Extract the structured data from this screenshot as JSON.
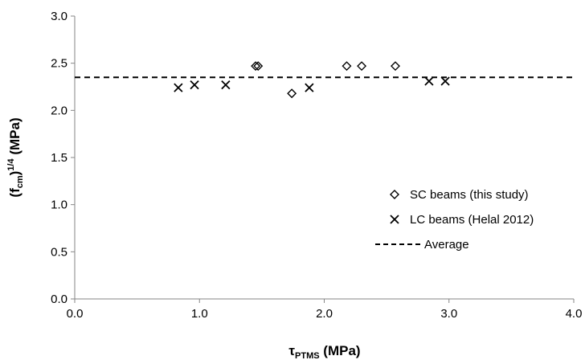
{
  "chart_data": {
    "type": "scatter",
    "xlim": [
      0,
      4
    ],
    "ylim": [
      0,
      3
    ],
    "x_ticks": [
      "0.0",
      "1.0",
      "2.0",
      "3.0",
      "4.0"
    ],
    "y_ticks": [
      "0.0",
      "0.5",
      "1.0",
      "1.5",
      "2.0",
      "2.5",
      "3.0"
    ],
    "x_tick_values": [
      0,
      1,
      2,
      3,
      4
    ],
    "y_tick_values": [
      0,
      0.5,
      1,
      1.5,
      2,
      2.5,
      3
    ],
    "xlabel": {
      "main": "τ",
      "sub": "PTMS",
      "unit": " (MPa)"
    },
    "ylabel": {
      "open": "(f",
      "sub": "cm",
      "close": ")",
      "sup": "1/4",
      "unit": " (MPa)"
    },
    "grid": false,
    "legend_position": "right",
    "series": [
      {
        "name": "SC beams (this study)",
        "marker": "diamond",
        "color": "#000000",
        "points": [
          {
            "x": 1.45,
            "y": 2.47
          },
          {
            "x": 1.47,
            "y": 2.47
          },
          {
            "x": 1.74,
            "y": 2.18
          },
          {
            "x": 2.18,
            "y": 2.47
          },
          {
            "x": 2.3,
            "y": 2.47
          },
          {
            "x": 2.57,
            "y": 2.47
          }
        ]
      },
      {
        "name": "LC beams (Helal 2012)",
        "marker": "x",
        "color": "#000000",
        "points": [
          {
            "x": 0.83,
            "y": 2.24
          },
          {
            "x": 0.96,
            "y": 2.27
          },
          {
            "x": 1.21,
            "y": 2.27
          },
          {
            "x": 1.88,
            "y": 2.24
          },
          {
            "x": 2.84,
            "y": 2.31
          },
          {
            "x": 2.97,
            "y": 2.31
          }
        ]
      },
      {
        "name": "Average",
        "marker": "dashed-line",
        "color": "#000000",
        "y": 2.35
      }
    ]
  }
}
